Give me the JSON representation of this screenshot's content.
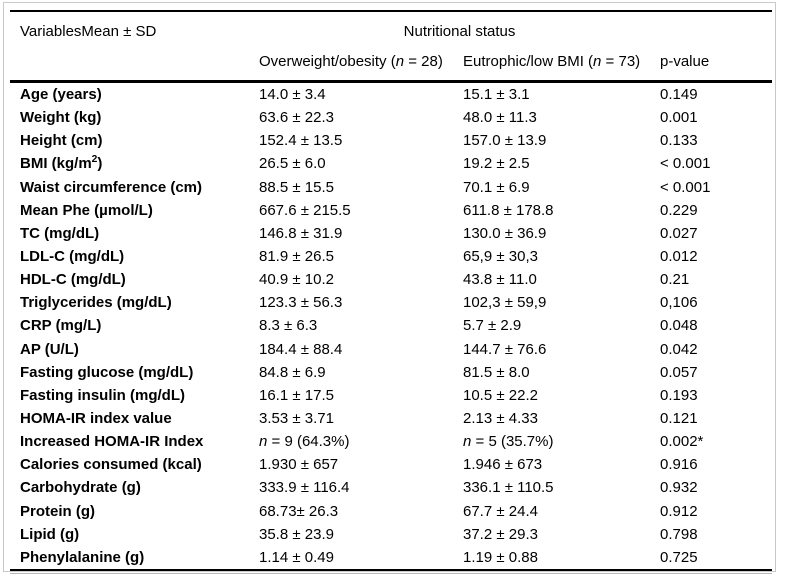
{
  "colors": {
    "rule": "#000000",
    "frame": "#c9c9c9",
    "text": "#000000",
    "background": "#ffffff"
  },
  "table": {
    "header": {
      "col1": "VariablesMean ± SD",
      "group": "Nutritional status",
      "subcols": [
        [
          {
            "t": "Overweight/obesity ("
          },
          {
            "t": "n",
            "i": true
          },
          {
            "t": " = 28)"
          }
        ],
        [
          {
            "t": "Eutrophic/low BMI ("
          },
          {
            "t": "n",
            "i": true
          },
          {
            "t": " = 73)"
          }
        ],
        [
          {
            "t": "p-value"
          }
        ]
      ]
    },
    "rows": [
      {
        "label": "Age (years)",
        "values": [
          "14.0 ± 3.4",
          "15.1 ± 3.1",
          "0.149"
        ]
      },
      {
        "label": "Weight (kg)",
        "values": [
          "63.6 ± 22.3",
          "48.0 ± 11.3",
          "0.001"
        ]
      },
      {
        "label": "Height (cm)",
        "values": [
          "152.4 ± 13.5",
          "157.0 ± 13.9",
          "0.133"
        ]
      },
      {
        "label": [
          {
            "t": "BMI (kg/m"
          },
          {
            "t": "2",
            "sup": true
          },
          {
            "t": ")"
          }
        ],
        "values": [
          "26.5 ± 6.0",
          "19.2 ± 2.5",
          "< 0.001"
        ]
      },
      {
        "label": "Waist circumference (cm)",
        "values": [
          "88.5 ± 15.5",
          "70.1 ± 6.9",
          "< 0.001"
        ]
      },
      {
        "label": "Mean Phe (µmol/L)",
        "values": [
          "667.6 ± 215.5",
          "611.8 ± 178.8",
          "0.229"
        ]
      },
      {
        "label": "TC (mg/dL)",
        "values": [
          "146.8 ± 31.9",
          "130.0 ± 36.9",
          "0.027"
        ]
      },
      {
        "label": "LDL-C (mg/dL)",
        "values": [
          "81.9 ± 26.5",
          "65,9 ± 30,3",
          "0.012"
        ]
      },
      {
        "label": "HDL-C (mg/dL)",
        "values": [
          "40.9 ± 10.2",
          "43.8 ± 11.0",
          "0.21"
        ]
      },
      {
        "label": "Triglycerides (mg/dL)",
        "values": [
          "123.3 ± 56.3",
          "102,3 ± 59,9",
          "0,106"
        ]
      },
      {
        "label": "CRP (mg/L)",
        "values": [
          "8.3 ± 6.3",
          "5.7 ± 2.9",
          "0.048"
        ]
      },
      {
        "label": "AP (U/L)",
        "values": [
          "184.4 ± 88.4",
          "144.7 ± 76.6",
          "0.042"
        ]
      },
      {
        "label": "Fasting glucose (mg/dL)",
        "values": [
          "84.8 ± 6.9",
          "81.5 ± 8.0",
          "0.057"
        ]
      },
      {
        "label": "Fasting insulin (mg/dL)",
        "values": [
          "16.1 ± 17.5",
          "10.5 ± 22.2",
          "0.193"
        ]
      },
      {
        "label": "HOMA-IR index value",
        "values": [
          "3.53 ± 3.71",
          "2.13 ± 4.33",
          "0.121"
        ]
      },
      {
        "label": "Increased HOMA-IR Index",
        "values": [
          [
            {
              "t": "n",
              "i": true
            },
            {
              "t": " = 9 (64.3%)"
            }
          ],
          [
            {
              "t": "n",
              "i": true
            },
            {
              "t": " = 5 (35.7%)"
            }
          ],
          "0.002*"
        ]
      },
      {
        "label": "Calories consumed (kcal)",
        "values": [
          "1.930 ± 657",
          "1.946 ± 673",
          "0.916"
        ]
      },
      {
        "label": "Carbohydrate (g)",
        "values": [
          "333.9 ± 116.4",
          "336.1 ± 110.5",
          "0.932"
        ]
      },
      {
        "label": "Protein (g)",
        "values": [
          "68.73± 26.3",
          "67.7 ± 24.4",
          "0.912"
        ]
      },
      {
        "label": "Lipid (g)",
        "values": [
          "35.8 ± 23.9",
          "37.2 ± 29.3",
          "0.798"
        ]
      },
      {
        "label": "Phenylalanine (g)",
        "values": [
          "1.14 ± 0.49",
          "1.19 ± 0.88",
          "0.725"
        ]
      }
    ]
  }
}
